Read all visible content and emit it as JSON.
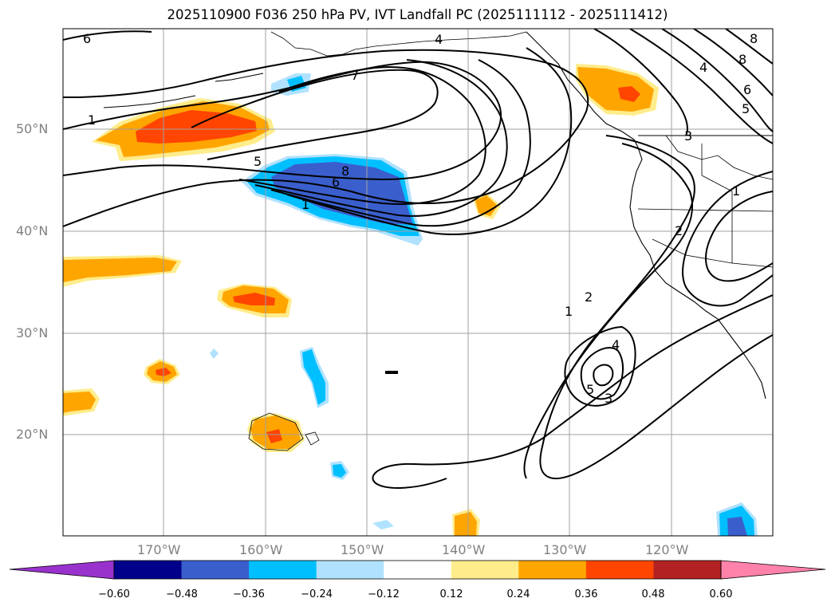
{
  "title": "2025110900 F036 250 hPa PV, IVT Landfall PC (2025111112 - 2025111412)",
  "lat_labels": [
    "50°N",
    "40°N",
    "30°N",
    "20°N"
  ],
  "lon_labels": [
    "170°W",
    "160°W",
    "150°W",
    "140°W",
    "130°W",
    "120°W"
  ],
  "colorbar": {
    "ticks": [
      "−0.60",
      "−0.48",
      "−0.36",
      "−0.24",
      "−0.12",
      "0.12",
      "0.24",
      "0.36",
      "0.48",
      "0.60"
    ],
    "colors": [
      "#9932cc",
      "#00008b",
      "#3a5fcd",
      "#00bfff",
      "#b0e2ff",
      "#ffffff",
      "#ffec8b",
      "#ffa500",
      "#ff4500",
      "#b22222",
      "#ff82ab"
    ]
  },
  "contour_labels": {
    "c1": "1",
    "c2": "2",
    "c3": "3",
    "c4": "4",
    "c5": "5",
    "c6": "6",
    "c7": "7",
    "c8": "8"
  },
  "colors": {
    "contour": "#000000",
    "grid": "#a0a0a0",
    "label": "#808080"
  }
}
